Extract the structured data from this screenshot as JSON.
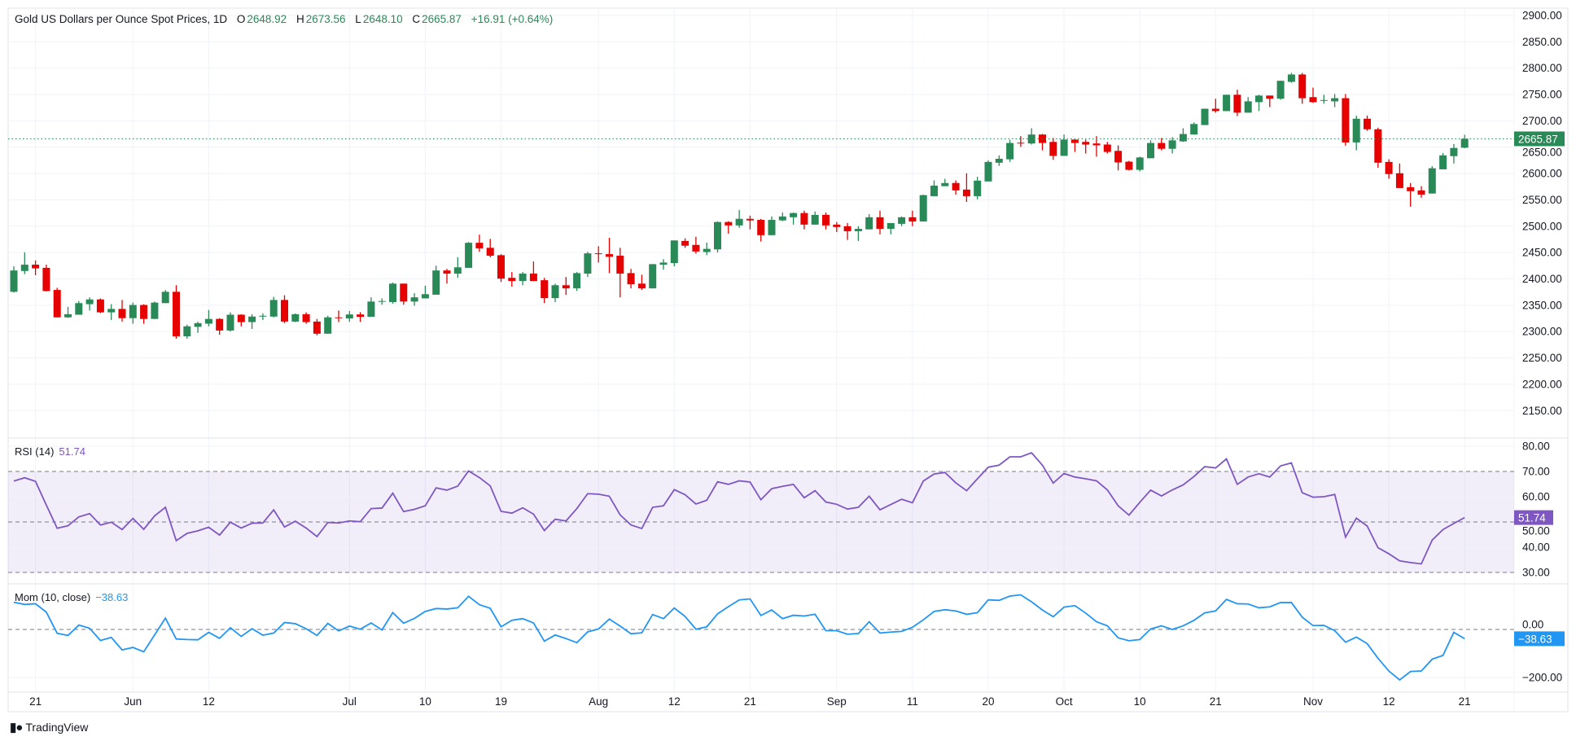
{
  "header": {
    "title": "Gold US Dollars per Ounce Spot Prices, 1D",
    "open_label": "O",
    "open": "2648.92",
    "high_label": "H",
    "high": "2673.56",
    "low_label": "L",
    "low": "2648.10",
    "close_label": "C",
    "close": "2665.87",
    "change": "+16.91 (+0.64%)"
  },
  "indicators": {
    "rsi": {
      "label": "RSI (14)",
      "value": "51.74"
    },
    "mom": {
      "label": "Mom (10, close)",
      "value": "−38.63"
    }
  },
  "branding": {
    "logo_text": "TradingView",
    "logo_mark": "TV"
  },
  "colors": {
    "up": "#2a8a57",
    "down": "#e60000",
    "rsi": "#7e57c2",
    "mom": "#2196f3",
    "grid": "#f0f3fa"
  },
  "chart_data": [
    {
      "type": "candlestick",
      "title": "Gold US Dollars per Ounce Spot Prices, 1D",
      "ylim": [
        2110,
        2910
      ],
      "y_ticks": [
        "2150.00",
        "2200.00",
        "2250.00",
        "2300.00",
        "2350.00",
        "2400.00",
        "2450.00",
        "2500.00",
        "2550.00",
        "2600.00",
        "2650.00",
        "2700.00",
        "2750.00",
        "2800.00",
        "2850.00",
        "2900.00"
      ],
      "last_price_label": "2665.87",
      "x_ticks": [
        {
          "label": "21",
          "bar": 2
        },
        {
          "label": "Jun",
          "bar": 11
        },
        {
          "label": "12",
          "bar": 18
        },
        {
          "label": "Jul",
          "bar": 31
        },
        {
          "label": "10",
          "bar": 38
        },
        {
          "label": "19",
          "bar": 45
        },
        {
          "label": "Aug",
          "bar": 54
        },
        {
          "label": "12",
          "bar": 61
        },
        {
          "label": "21",
          "bar": 68
        },
        {
          "label": "Sep",
          "bar": 76
        },
        {
          "label": "11",
          "bar": 83
        },
        {
          "label": "20",
          "bar": 90
        },
        {
          "label": "Oct",
          "bar": 97
        },
        {
          "label": "10",
          "bar": 104
        },
        {
          "label": "21",
          "bar": 111
        },
        {
          "label": "Nov",
          "bar": 120
        },
        {
          "label": "12",
          "bar": 127
        },
        {
          "label": "21",
          "bar": 134
        }
      ],
      "ohlc_fields": [
        "open",
        "high",
        "low",
        "close"
      ],
      "ohlc": [
        [
          2375.5,
          2424,
          2374,
          2416
        ],
        [
          2415,
          2450.5,
          2409,
          2427
        ],
        [
          2427,
          2435,
          2407,
          2420
        ],
        [
          2421,
          2427,
          2376,
          2377
        ],
        [
          2379,
          2383,
          2327,
          2327
        ],
        [
          2327,
          2347,
          2326,
          2333
        ],
        [
          2332,
          2358,
          2332,
          2354
        ],
        [
          2352,
          2365,
          2340,
          2361
        ],
        [
          2361,
          2363,
          2335,
          2336.5
        ],
        [
          2336.5,
          2352,
          2322,
          2343
        ],
        [
          2343,
          2360,
          2319,
          2325.5
        ],
        [
          2325.5,
          2355,
          2315,
          2350.5
        ],
        [
          2350.5,
          2352,
          2315,
          2324
        ],
        [
          2324,
          2357,
          2324,
          2355
        ],
        [
          2354,
          2379,
          2354,
          2375.5
        ],
        [
          2375.5,
          2388,
          2286.5,
          2291
        ],
        [
          2291,
          2313,
          2286.5,
          2310
        ],
        [
          2309,
          2319,
          2297.5,
          2316
        ],
        [
          2315,
          2341,
          2310,
          2324
        ],
        [
          2324,
          2325.5,
          2294,
          2302
        ],
        [
          2302,
          2336.5,
          2300,
          2332
        ],
        [
          2332,
          2333,
          2310,
          2318
        ],
        [
          2318,
          2333,
          2305,
          2328.5
        ],
        [
          2328.5,
          2334.5,
          2322,
          2330
        ],
        [
          2328.5,
          2366,
          2327,
          2360
        ],
        [
          2360,
          2369,
          2316,
          2319
        ],
        [
          2319,
          2334.5,
          2318,
          2333
        ],
        [
          2333,
          2336.5,
          2315,
          2318
        ],
        [
          2319,
          2324,
          2293,
          2296
        ],
        [
          2296,
          2330,
          2296,
          2327
        ],
        [
          2327,
          2340,
          2318,
          2326
        ],
        [
          2325,
          2339,
          2318.5,
          2332.5
        ],
        [
          2332.5,
          2337,
          2318.5,
          2328
        ],
        [
          2328,
          2365,
          2328,
          2357
        ],
        [
          2357,
          2363,
          2351,
          2358
        ],
        [
          2356,
          2393,
          2353,
          2391
        ],
        [
          2391,
          2391,
          2351,
          2357
        ],
        [
          2357,
          2373,
          2349,
          2365
        ],
        [
          2363,
          2387,
          2363,
          2371
        ],
        [
          2370,
          2425,
          2370,
          2416
        ],
        [
          2416,
          2419,
          2391,
          2410
        ],
        [
          2410,
          2441,
          2402,
          2422
        ],
        [
          2421,
          2470,
          2421,
          2468.5
        ],
        [
          2468.5,
          2484,
          2451.5,
          2458
        ],
        [
          2459,
          2476,
          2441,
          2444
        ],
        [
          2445,
          2447,
          2394,
          2400.5
        ],
        [
          2402,
          2413,
          2385,
          2396
        ],
        [
          2396,
          2413,
          2388,
          2410
        ],
        [
          2410,
          2433,
          2396,
          2396
        ],
        [
          2397.5,
          2402,
          2354,
          2363.5
        ],
        [
          2363.5,
          2391,
          2356,
          2388
        ],
        [
          2388,
          2403.5,
          2369.5,
          2382
        ],
        [
          2382,
          2413,
          2377,
          2411
        ],
        [
          2410,
          2451.5,
          2403.5,
          2448.5
        ],
        [
          2448.5,
          2462,
          2431,
          2447
        ],
        [
          2447,
          2478,
          2411,
          2442
        ],
        [
          2444,
          2459,
          2365,
          2410
        ],
        [
          2411,
          2419,
          2382,
          2390
        ],
        [
          2391,
          2408,
          2379,
          2382
        ],
        [
          2382,
          2428,
          2382,
          2428
        ],
        [
          2427,
          2437.5,
          2417.5,
          2431
        ],
        [
          2430,
          2473,
          2424,
          2473
        ],
        [
          2472,
          2477,
          2459,
          2463
        ],
        [
          2464.5,
          2480,
          2448,
          2452
        ],
        [
          2451,
          2469,
          2445,
          2457
        ],
        [
          2456,
          2509,
          2450,
          2508
        ],
        [
          2508,
          2509.5,
          2486,
          2501.5
        ],
        [
          2501.5,
          2531,
          2497,
          2514
        ],
        [
          2514,
          2520,
          2494,
          2511
        ],
        [
          2512,
          2514,
          2471,
          2483
        ],
        [
          2483,
          2518.5,
          2483,
          2512
        ],
        [
          2511,
          2526,
          2509.5,
          2518.5
        ],
        [
          2517,
          2526,
          2503,
          2525
        ],
        [
          2525,
          2529.5,
          2494,
          2503
        ],
        [
          2503,
          2528,
          2503,
          2521.5
        ],
        [
          2521.5,
          2526,
          2494,
          2501.5
        ],
        [
          2503,
          2508,
          2489,
          2498.5
        ],
        [
          2500,
          2506,
          2474,
          2490.5
        ],
        [
          2490.5,
          2500,
          2472,
          2495
        ],
        [
          2494,
          2523,
          2494,
          2517
        ],
        [
          2517,
          2529.5,
          2484.5,
          2495
        ],
        [
          2495,
          2506,
          2484.5,
          2506
        ],
        [
          2504.5,
          2518.5,
          2500,
          2517
        ],
        [
          2517,
          2529.5,
          2500,
          2509
        ],
        [
          2509,
          2560,
          2509,
          2559
        ],
        [
          2557,
          2587,
          2557,
          2577
        ],
        [
          2576,
          2590,
          2576,
          2582
        ],
        [
          2582,
          2587,
          2560,
          2568
        ],
        [
          2569.5,
          2600.5,
          2546,
          2557
        ],
        [
          2557,
          2594,
          2551,
          2586.5
        ],
        [
          2585,
          2625,
          2585,
          2622
        ],
        [
          2620.5,
          2634.5,
          2614.5,
          2628
        ],
        [
          2627,
          2664,
          2622,
          2658
        ],
        [
          2658.5,
          2671,
          2650.5,
          2657.5
        ],
        [
          2657,
          2686,
          2655,
          2674
        ],
        [
          2674,
          2675,
          2644,
          2658
        ],
        [
          2660,
          2667.5,
          2626,
          2633.5
        ],
        [
          2633.5,
          2674,
          2633.5,
          2664.5
        ],
        [
          2664.5,
          2664.5,
          2641,
          2658
        ],
        [
          2660,
          2664.5,
          2638,
          2655
        ],
        [
          2657,
          2671,
          2632,
          2653.5
        ],
        [
          2655,
          2660,
          2638,
          2641
        ],
        [
          2643,
          2653.5,
          2606,
          2621
        ],
        [
          2622.5,
          2624,
          2606,
          2607
        ],
        [
          2607,
          2632,
          2604,
          2630.5
        ],
        [
          2629,
          2663,
          2629,
          2658
        ],
        [
          2658,
          2667.5,
          2644,
          2647
        ],
        [
          2647,
          2669,
          2638,
          2663
        ],
        [
          2661,
          2686,
          2660,
          2675
        ],
        [
          2674,
          2697,
          2674,
          2694
        ],
        [
          2692,
          2723,
          2692,
          2723
        ],
        [
          2723,
          2742,
          2715.5,
          2718.5
        ],
        [
          2718.5,
          2749.5,
          2718.5,
          2749.5
        ],
        [
          2749.5,
          2759,
          2709,
          2715.5
        ],
        [
          2715.5,
          2745,
          2715.5,
          2737
        ],
        [
          2735.5,
          2749.5,
          2718.5,
          2748
        ],
        [
          2748,
          2748,
          2726,
          2742
        ],
        [
          2742,
          2776,
          2740,
          2776
        ],
        [
          2774,
          2791,
          2772.5,
          2788
        ],
        [
          2788,
          2791,
          2732.5,
          2743
        ],
        [
          2745,
          2763,
          2734,
          2735.5
        ],
        [
          2738.5,
          2749.5,
          2732.5,
          2739.5
        ],
        [
          2737,
          2751,
          2726,
          2743
        ],
        [
          2743,
          2751,
          2653,
          2659
        ],
        [
          2659,
          2710,
          2644,
          2704
        ],
        [
          2704,
          2710,
          2681,
          2684
        ],
        [
          2684,
          2687,
          2611,
          2620.5
        ],
        [
          2622,
          2627,
          2590,
          2599
        ],
        [
          2600.5,
          2619,
          2572.5,
          2572.5
        ],
        [
          2574,
          2582,
          2537,
          2566.5
        ],
        [
          2568,
          2576,
          2554,
          2560
        ],
        [
          2562,
          2614,
          2562,
          2610
        ],
        [
          2608,
          2639,
          2608,
          2634.5
        ],
        [
          2633,
          2656,
          2619,
          2648.5
        ],
        [
          2648.92,
          2673.56,
          2648.1,
          2665.87
        ]
      ]
    },
    {
      "type": "line",
      "name": "RSI (14)",
      "ylim": [
        27,
        82
      ],
      "y_ticks": [
        "30.00",
        "40.00",
        "50.00",
        "60.00",
        "70.00",
        "80.00"
      ],
      "bands": {
        "upper": 70,
        "middle": 50,
        "lower": 30
      },
      "last_value_label": "51.74",
      "values": [
        66.2,
        67.5,
        66.1,
        56.7,
        47.5,
        48.5,
        52,
        53.3,
        48.8,
        49.9,
        47,
        51.4,
        47.1,
        52.4,
        55.8,
        42.6,
        45.5,
        46.5,
        47.9,
        44.8,
        49.9,
        47.6,
        49.5,
        49.6,
        54.8,
        48,
        50.3,
        47.6,
        44.2,
        49.8,
        49.6,
        50.4,
        50.1,
        55.3,
        55.5,
        61.4,
        54.1,
        55,
        56.4,
        63.5,
        62.6,
        64.2,
        70.2,
        67.6,
        64.3,
        54.2,
        53.5,
        55.6,
        53.1,
        46.6,
        51.1,
        50.4,
        55.3,
        61.2,
        61,
        60.2,
        52.8,
        48.8,
        47.4,
        55.8,
        56.4,
        62.8,
        60.8,
        57.1,
        58.6,
        65.9,
        64.9,
        66.3,
        65.8,
        58.8,
        63.2,
        64.1,
        64.9,
        59.6,
        62.4,
        57.9,
        57,
        55.1,
        55.8,
        60.2,
        54.8,
        56.9,
        59,
        57.6,
        66.2,
        69,
        69.6,
        65.5,
        62.4,
        67.1,
        71.7,
        72.5,
        75.8,
        75.8,
        77.4,
        72.5,
        65.4,
        69.2,
        67.8,
        67.1,
        66.3,
        62.7,
        56.4,
        52.7,
        57.8,
        62.6,
        60.3,
        62.7,
        64.7,
        68,
        71.9,
        71.4,
        75,
        64.9,
        67.8,
        69.1,
        67.8,
        72.2,
        73.4,
        61.6,
        59.8,
        60,
        60.9,
        44,
        51.5,
        48.4,
        39.8,
        37.4,
        34.6,
        33.9,
        33.4,
        42.8,
        47,
        49.4,
        51.74
      ]
    },
    {
      "type": "line",
      "name": "Mom (10, close)",
      "ylim": [
        -262,
        190
      ],
      "y_ticks": [
        "0.00",
        "−200.00"
      ],
      "last_value_label": "−38.63",
      "values": [
        113,
        104,
        107,
        72,
        -16,
        -25,
        18,
        5,
        -46,
        -33,
        -85,
        -75,
        -93,
        -23,
        47,
        -40,
        -42,
        -43,
        -12,
        -37,
        7,
        -29,
        3,
        -24,
        -15,
        29,
        24,
        3,
        -25,
        25,
        -6,
        14,
        1,
        27,
        -2,
        70,
        26,
        46,
        75,
        87,
        85,
        90,
        138,
        103,
        88,
        11,
        38,
        45,
        27,
        -49,
        -23,
        -38,
        -55,
        -10,
        2,
        43,
        14,
        -18,
        -14,
        62,
        45,
        89,
        54,
        1,
        11,
        65,
        95,
        123,
        127,
        58,
        81,
        45,
        59,
        56,
        63,
        -5,
        -5,
        -20,
        -17,
        32,
        -15,
        -11,
        -8,
        9,
        40,
        75,
        82,
        77,
        63,
        70,
        123,
        121,
        139,
        144,
        115,
        81,
        53,
        93,
        99,
        68,
        32,
        15,
        -35,
        -47,
        -42,
        2,
        15,
        0,
        15,
        38,
        69,
        77,
        125,
        107,
        106,
        90,
        94,
        112,
        112,
        51,
        16,
        17,
        -5,
        -53,
        -32,
        -59,
        -120,
        -173,
        -210,
        -175,
        -173,
        -124,
        -108,
        -12,
        -38.63
      ]
    }
  ]
}
